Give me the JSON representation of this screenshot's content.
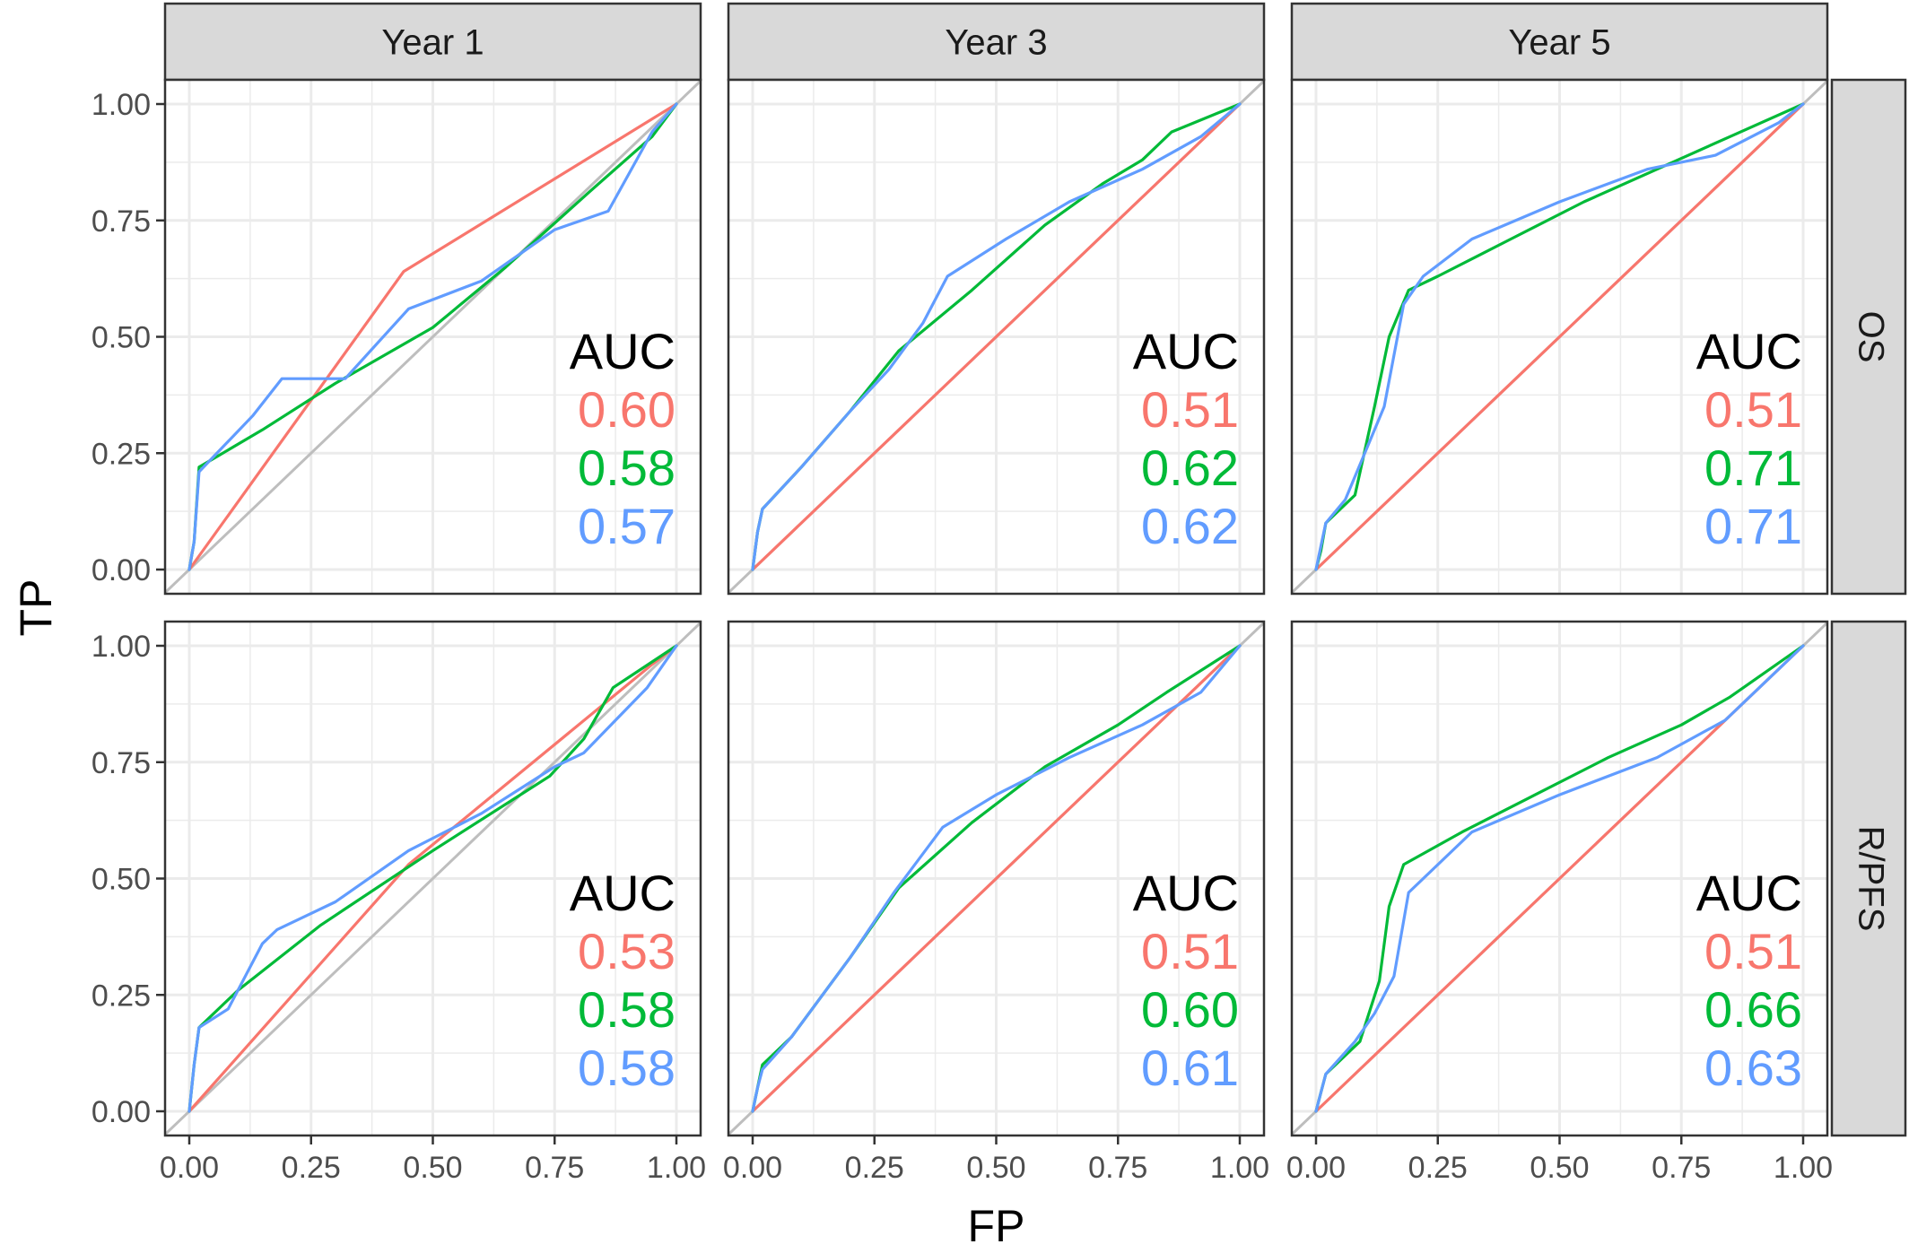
{
  "chart_data": {
    "type": "line",
    "xlabel": "FP",
    "ylabel": "TP",
    "xlim": [
      0,
      1
    ],
    "ylim": [
      0,
      1
    ],
    "grid": true,
    "column_facets": [
      "Year 1",
      "Year 3",
      "Year 5"
    ],
    "row_facets": [
      "OS",
      "R/PFS"
    ],
    "ticks": [
      "0.00",
      "0.25",
      "0.50",
      "0.75",
      "1.00"
    ],
    "colors": {
      "red": "#F8766D",
      "green": "#00BA38",
      "blue": "#619CFF",
      "diagonal": "#BEBEBE",
      "strip_fill": "#D9D9D9",
      "panel_border": "#333333",
      "grid": "#EBEBEB"
    },
    "panels": [
      {
        "column": "Year 1",
        "row": "OS",
        "auc_header": "AUC",
        "auc": [
          "0.60",
          "0.58",
          "0.57"
        ],
        "series": [
          {
            "color": "red",
            "x": [
              0,
              0.44,
              1
            ],
            "y": [
              0,
              0.64,
              1
            ]
          },
          {
            "color": "green",
            "x": [
              0,
              0.01,
              0.02,
              0.15,
              0.3,
              0.5,
              0.65,
              0.82,
              0.95,
              1
            ],
            "y": [
              0,
              0.06,
              0.22,
              0.3,
              0.4,
              0.52,
              0.65,
              0.81,
              0.93,
              1
            ]
          },
          {
            "color": "blue",
            "x": [
              0,
              0.01,
              0.02,
              0.13,
              0.19,
              0.32,
              0.45,
              0.6,
              0.75,
              0.86,
              0.95,
              1
            ],
            "y": [
              0,
              0.06,
              0.21,
              0.33,
              0.41,
              0.41,
              0.56,
              0.62,
              0.73,
              0.77,
              0.94,
              1
            ]
          }
        ]
      },
      {
        "column": "Year 3",
        "row": "OS",
        "auc_header": "AUC",
        "auc": [
          "0.51",
          "0.62",
          "0.62"
        ],
        "series": [
          {
            "color": "red",
            "x": [
              0,
              1
            ],
            "y": [
              0,
              1
            ]
          },
          {
            "color": "green",
            "x": [
              0,
              0.01,
              0.02,
              0.1,
              0.2,
              0.3,
              0.45,
              0.6,
              0.72,
              0.8,
              0.86,
              1
            ],
            "y": [
              0,
              0.08,
              0.13,
              0.22,
              0.34,
              0.47,
              0.6,
              0.74,
              0.83,
              0.88,
              0.94,
              1
            ]
          },
          {
            "color": "blue",
            "x": [
              0,
              0.01,
              0.02,
              0.1,
              0.2,
              0.28,
              0.35,
              0.4,
              0.52,
              0.65,
              0.8,
              0.92,
              1
            ],
            "y": [
              0,
              0.08,
              0.13,
              0.22,
              0.34,
              0.43,
              0.53,
              0.63,
              0.71,
              0.79,
              0.86,
              0.93,
              1
            ]
          }
        ]
      },
      {
        "column": "Year 5",
        "row": "OS",
        "auc_header": "AUC",
        "auc": [
          "0.51",
          "0.71",
          "0.71"
        ],
        "series": [
          {
            "color": "red",
            "x": [
              0,
              1
            ],
            "y": [
              0,
              1
            ]
          },
          {
            "color": "green",
            "x": [
              0,
              0.01,
              0.02,
              0.05,
              0.08,
              0.12,
              0.15,
              0.19,
              0.25,
              0.4,
              0.55,
              0.7,
              0.85,
              1
            ],
            "y": [
              0,
              0.04,
              0.1,
              0.13,
              0.16,
              0.35,
              0.5,
              0.6,
              0.63,
              0.71,
              0.79,
              0.86,
              0.93,
              1
            ]
          },
          {
            "color": "blue",
            "x": [
              0,
              0.01,
              0.02,
              0.06,
              0.1,
              0.14,
              0.18,
              0.22,
              0.32,
              0.5,
              0.68,
              0.82,
              0.95,
              1
            ],
            "y": [
              0,
              0.05,
              0.1,
              0.15,
              0.25,
              0.35,
              0.57,
              0.63,
              0.71,
              0.79,
              0.86,
              0.89,
              0.96,
              1
            ]
          }
        ]
      },
      {
        "column": "Year 1",
        "row": "R/PFS",
        "auc_header": "AUC",
        "auc": [
          "0.53",
          "0.58",
          "0.58"
        ],
        "series": [
          {
            "color": "red",
            "x": [
              0,
              0.45,
              0.95,
              1
            ],
            "y": [
              0,
              0.53,
              0.96,
              1
            ]
          },
          {
            "color": "green",
            "x": [
              0,
              0.01,
              0.02,
              0.1,
              0.27,
              0.5,
              0.74,
              0.81,
              0.87,
              1
            ],
            "y": [
              0,
              0.1,
              0.18,
              0.26,
              0.4,
              0.56,
              0.72,
              0.8,
              0.91,
              1
            ]
          },
          {
            "color": "blue",
            "x": [
              0,
              0.01,
              0.02,
              0.08,
              0.15,
              0.18,
              0.3,
              0.45,
              0.6,
              0.75,
              0.81,
              0.94,
              1
            ],
            "y": [
              0,
              0.1,
              0.18,
              0.22,
              0.36,
              0.39,
              0.45,
              0.56,
              0.64,
              0.74,
              0.77,
              0.91,
              1
            ]
          }
        ]
      },
      {
        "column": "Year 3",
        "row": "R/PFS",
        "auc_header": "AUC",
        "auc": [
          "0.51",
          "0.60",
          "0.61"
        ],
        "series": [
          {
            "color": "red",
            "x": [
              0,
              1
            ],
            "y": [
              0,
              1
            ]
          },
          {
            "color": "green",
            "x": [
              0,
              0.01,
              0.02,
              0.08,
              0.2,
              0.3,
              0.45,
              0.6,
              0.75,
              0.85,
              1
            ],
            "y": [
              0,
              0.05,
              0.1,
              0.16,
              0.33,
              0.48,
              0.62,
              0.74,
              0.83,
              0.9,
              1
            ]
          },
          {
            "color": "blue",
            "x": [
              0,
              0.01,
              0.02,
              0.08,
              0.2,
              0.29,
              0.39,
              0.5,
              0.65,
              0.8,
              0.92,
              1
            ],
            "y": [
              0,
              0.05,
              0.09,
              0.16,
              0.33,
              0.47,
              0.61,
              0.68,
              0.76,
              0.83,
              0.9,
              1
            ]
          }
        ]
      },
      {
        "column": "Year 5",
        "row": "R/PFS",
        "auc_header": "AUC",
        "auc": [
          "0.51",
          "0.66",
          "0.63"
        ],
        "series": [
          {
            "color": "red",
            "x": [
              0,
              1
            ],
            "y": [
              0,
              1
            ]
          },
          {
            "color": "green",
            "x": [
              0,
              0.01,
              0.02,
              0.09,
              0.13,
              0.15,
              0.18,
              0.3,
              0.45,
              0.6,
              0.75,
              0.85,
              1
            ],
            "y": [
              0,
              0.04,
              0.08,
              0.15,
              0.28,
              0.44,
              0.53,
              0.6,
              0.68,
              0.76,
              0.83,
              0.89,
              1
            ]
          },
          {
            "color": "blue",
            "x": [
              0,
              0.01,
              0.02,
              0.08,
              0.12,
              0.16,
              0.19,
              0.32,
              0.5,
              0.7,
              0.84,
              1
            ],
            "y": [
              0,
              0.04,
              0.08,
              0.15,
              0.21,
              0.29,
              0.47,
              0.6,
              0.68,
              0.76,
              0.84,
              1
            ]
          }
        ]
      }
    ]
  }
}
